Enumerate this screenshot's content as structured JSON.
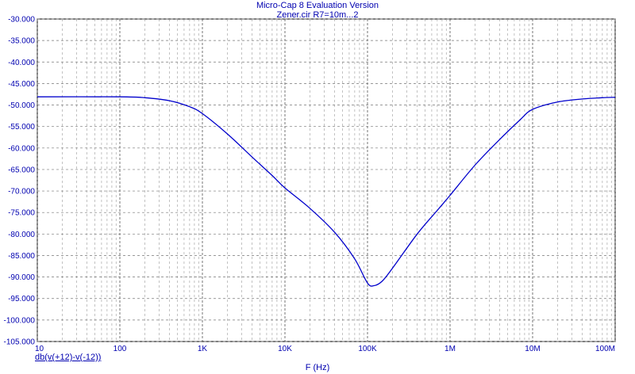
{
  "window": {
    "title": "Micro-Cap 8 Evaluation Version",
    "subtitle": "Zener.cir R7=10m...2"
  },
  "chart_data": {
    "type": "line",
    "title": "Micro-Cap 8 Evaluation Version",
    "subtitle": "Zener.cir R7=10m...2",
    "xlabel": "F (Hz)",
    "ylabel": "",
    "xscale": "log",
    "xlim": [
      10,
      100000000
    ],
    "ylim": [
      -105,
      -30
    ],
    "grid": "on (dashed, log minor x)",
    "yticks": [
      "-30.000",
      "-35.000",
      "-40.000",
      "-45.000",
      "-50.000",
      "-55.000",
      "-60.000",
      "-65.000",
      "-70.000",
      "-75.000",
      "-80.000",
      "-85.000",
      "-90.000",
      "-95.000",
      "-100.000",
      "-105.000"
    ],
    "yticks_values": [
      -30,
      -35,
      -40,
      -45,
      -50,
      -55,
      -60,
      -65,
      -70,
      -75,
      -80,
      -85,
      -90,
      -95,
      -100,
      -105
    ],
    "xticks": [
      "10",
      "100",
      "1K",
      "10K",
      "100K",
      "1M",
      "10M",
      "100M"
    ],
    "xticks_values": [
      10,
      100,
      1000,
      10000,
      100000,
      1000000,
      10000000,
      100000000
    ],
    "series": [
      {
        "name": "db(v(+12)-v(-12))",
        "color": "#0000cc",
        "x": [
          10,
          100,
          200,
          400,
          700,
          1000,
          2000,
          4000,
          7000,
          10000,
          20000,
          40000,
          70000,
          100000,
          120000,
          150000,
          200000,
          400000,
          700000,
          1000000,
          2000000,
          4000000,
          7000000,
          10000000,
          20000000,
          40000000,
          70000000,
          100000000
        ],
        "y": [
          -48.1,
          -48.1,
          -48.3,
          -49.0,
          -50.4,
          -52.0,
          -56.7,
          -62.1,
          -66.4,
          -69.3,
          -74.0,
          -79.6,
          -85.8,
          -91.4,
          -92.0,
          -91.0,
          -88.0,
          -80.0,
          -74.5,
          -71.0,
          -64.0,
          -58.0,
          -53.5,
          -51.0,
          -49.3,
          -48.6,
          -48.3,
          -48.2
        ]
      }
    ]
  },
  "legend": {
    "trace_label": "db(v(+12)-v(-12))"
  }
}
